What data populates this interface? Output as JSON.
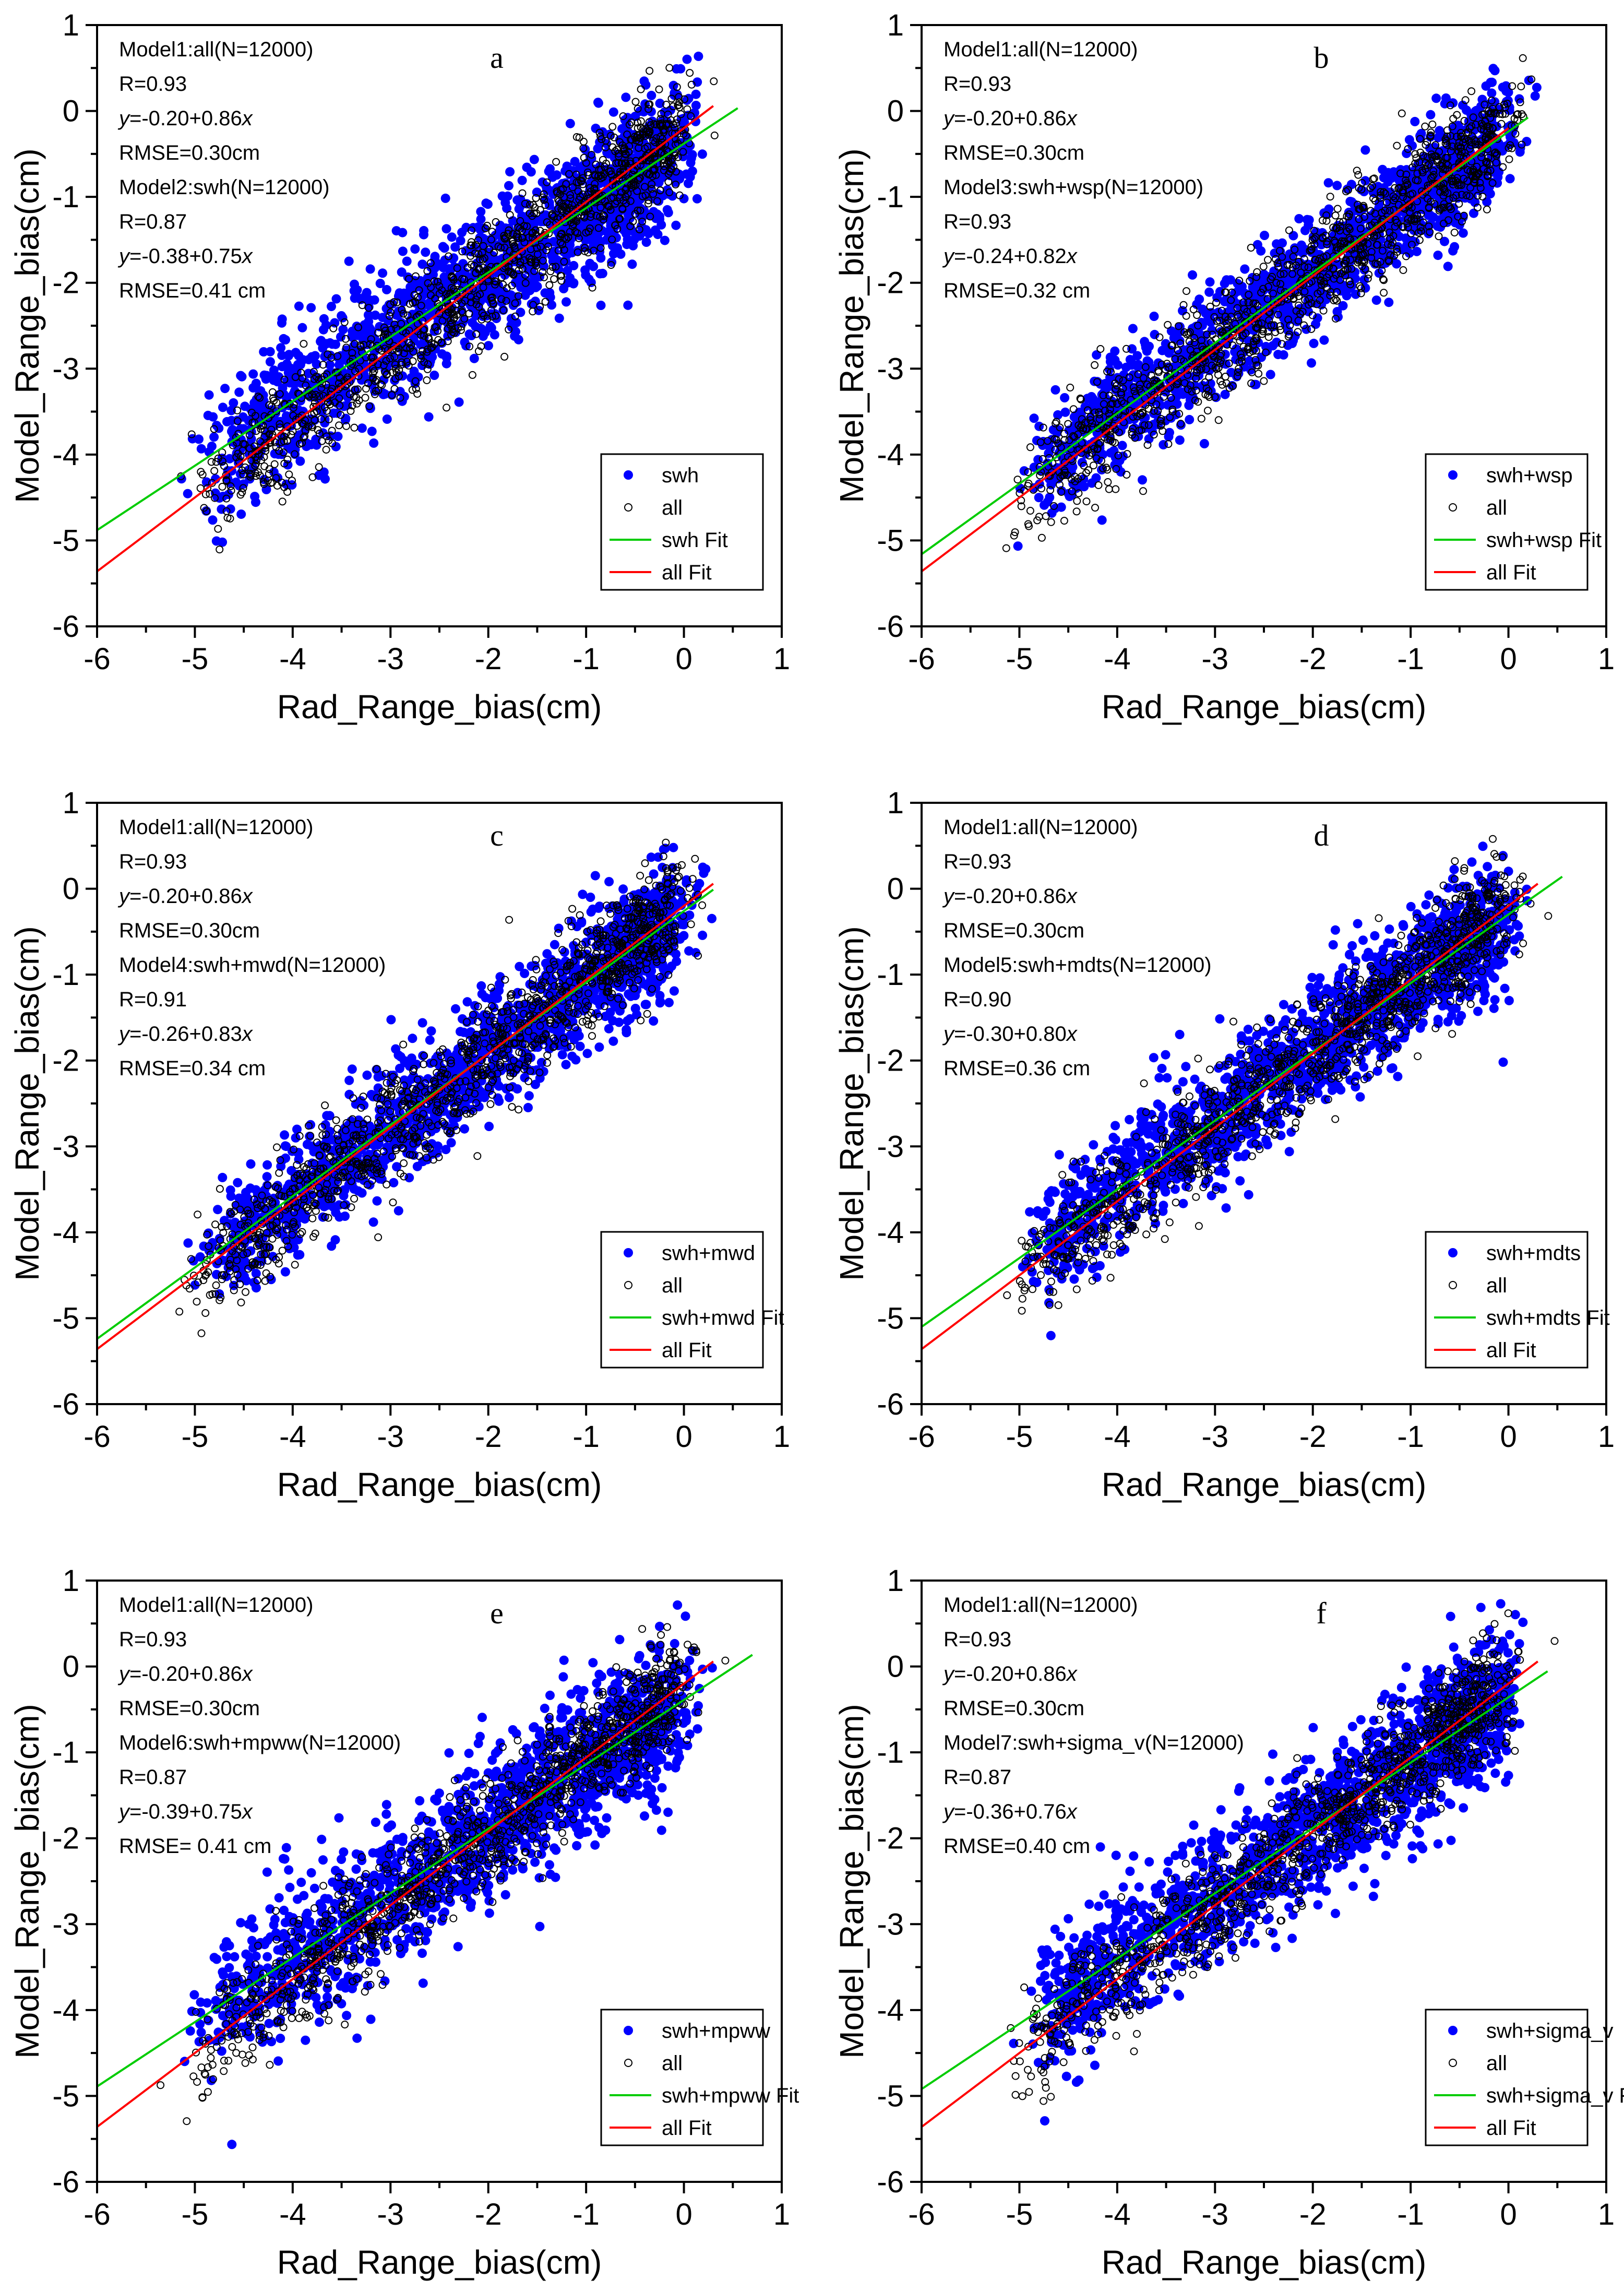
{
  "chart_data": [
    {
      "type": "scatter",
      "panel": "a",
      "xlabel": "Rad_Range_bias(cm)",
      "ylabel": "Model_Range_bias(cm)",
      "xlim": [
        -6,
        1
      ],
      "ylim": [
        -6,
        1
      ],
      "xticks": [
        "-6",
        "-5",
        "-4",
        "-3",
        "-2",
        "-1",
        "0",
        "1"
      ],
      "yticks": [
        "-6",
        "-5",
        "-4",
        "-3",
        "-2",
        "-1",
        "0",
        "1"
      ],
      "annotations": [
        {
          "text": "Model1:all(N=12000)"
        },
        {
          "text": "R=0.93"
        },
        {
          "pre": "",
          "it": "y",
          "post": "=-0.20+0.86",
          "it2": "x"
        },
        {
          "text": "RMSE=0.30cm"
        },
        {
          "text": "Model2:swh(N=12000)"
        },
        {
          "text": "R=0.87"
        },
        {
          "pre": "",
          "it": "y",
          "post": "=-0.38+0.75",
          "it2": "x"
        },
        {
          "text": "RMSE=0.41 cm"
        }
      ],
      "legend": [
        "swh",
        "all",
        "swh Fit",
        "all Fit"
      ],
      "series": [
        {
          "name": "swh",
          "kind": "points",
          "color": "#0000ff",
          "fit": {
            "intercept": -0.38,
            "slope": 0.75,
            "x_range": [
              -6,
              0.55
            ]
          },
          "R": 0.87,
          "RMSE": 0.41,
          "N": 12000
        },
        {
          "name": "all",
          "kind": "points",
          "color": "#000000",
          "fit": {
            "intercept": -0.2,
            "slope": 0.86,
            "x_range": [
              -6,
              0.3
            ]
          },
          "R": 0.93,
          "RMSE": 0.3,
          "N": 12000
        }
      ],
      "fit_colors": {
        "model": "#00cc00",
        "all": "#ff0000"
      }
    },
    {
      "type": "scatter",
      "panel": "b",
      "xlabel": "Rad_Range_bias(cm)",
      "ylabel": "Model_Range_bias(cm)",
      "xlim": [
        -6,
        1
      ],
      "ylim": [
        -6,
        1
      ],
      "xticks": [
        "-6",
        "-5",
        "-4",
        "-3",
        "-2",
        "-1",
        "0",
        "1"
      ],
      "yticks": [
        "-6",
        "-5",
        "-4",
        "-3",
        "-2",
        "-1",
        "0",
        "1"
      ],
      "annotations": [
        {
          "text": "Model1:all(N=12000)"
        },
        {
          "text": "R=0.93"
        },
        {
          "pre": "",
          "it": "y",
          "post": "=-0.20+0.86",
          "it2": "x"
        },
        {
          "text": "RMSE=0.30cm"
        },
        {
          "text": "Model3:swh+wsp(N=12000)"
        },
        {
          "text": "R=0.93"
        },
        {
          "pre": "",
          "it": "y",
          "post": "=-0.24+0.82",
          "it2": "x"
        },
        {
          "text": "RMSE=0.32 cm"
        }
      ],
      "legend": [
        "swh+wsp",
        "all",
        "swh+wsp Fit",
        "all Fit"
      ],
      "series": [
        {
          "name": "swh+wsp",
          "kind": "points",
          "color": "#0000ff",
          "fit": {
            "intercept": -0.24,
            "slope": 0.82,
            "x_range": [
              -6,
              0.2
            ]
          },
          "R": 0.93,
          "RMSE": 0.32,
          "N": 12000
        },
        {
          "name": "all",
          "kind": "points",
          "color": "#000000",
          "fit": {
            "intercept": -0.2,
            "slope": 0.86,
            "x_range": [
              -6,
              0.0
            ]
          },
          "R": 0.93,
          "RMSE": 0.3,
          "N": 12000
        }
      ],
      "fit_colors": {
        "model": "#00cc00",
        "all": "#ff0000"
      }
    },
    {
      "type": "scatter",
      "panel": "c",
      "xlabel": "Rad_Range_bias(cm)",
      "ylabel": "Model_Range_bias(cm)",
      "xlim": [
        -6,
        1
      ],
      "ylim": [
        -6,
        1
      ],
      "xticks": [
        "-6",
        "-5",
        "-4",
        "-3",
        "-2",
        "-1",
        "0",
        "1"
      ],
      "yticks": [
        "-6",
        "-5",
        "-4",
        "-3",
        "-2",
        "-1",
        "0",
        "1"
      ],
      "annotations": [
        {
          "text": "Model1:all(N=12000)"
        },
        {
          "text": "R=0.93"
        },
        {
          "pre": "",
          "it": "y",
          "post": "=-0.20+0.86",
          "it2": "x"
        },
        {
          "text": "RMSE=0.30cm"
        },
        {
          "text": "Model4:swh+mwd(N=12000)"
        },
        {
          "text": "R=0.91"
        },
        {
          "pre": "",
          "it": "y",
          "post": "=-0.26+0.83",
          "it2": "x"
        },
        {
          "text": "RMSE=0.34 cm"
        }
      ],
      "legend": [
        "swh+mwd",
        "all",
        "swh+mwd Fit",
        "all Fit"
      ],
      "series": [
        {
          "name": "swh+mwd",
          "kind": "points",
          "color": "#0000ff",
          "fit": {
            "intercept": -0.26,
            "slope": 0.83,
            "x_range": [
              -6,
              0.3
            ]
          },
          "R": 0.91,
          "RMSE": 0.34,
          "N": 12000
        },
        {
          "name": "all",
          "kind": "points",
          "color": "#000000",
          "fit": {
            "intercept": -0.2,
            "slope": 0.86,
            "x_range": [
              -6,
              0.3
            ]
          },
          "R": 0.93,
          "RMSE": 0.3,
          "N": 12000
        }
      ],
      "fit_colors": {
        "model": "#00cc00",
        "all": "#ff0000"
      }
    },
    {
      "type": "scatter",
      "panel": "d",
      "xlabel": "Rad_Range_bias(cm)",
      "ylabel": "Model_Range_bias(cm)",
      "xlim": [
        -6,
        1
      ],
      "ylim": [
        -6,
        1
      ],
      "xticks": [
        "-6",
        "-5",
        "-4",
        "-3",
        "-2",
        "-1",
        "0",
        "1"
      ],
      "yticks": [
        "-6",
        "-5",
        "-4",
        "-3",
        "-2",
        "-1",
        "0",
        "1"
      ],
      "annotations": [
        {
          "text": "Model1:all(N=12000)"
        },
        {
          "text": "R=0.93"
        },
        {
          "pre": "",
          "it": "y",
          "post": "=-0.20+0.86",
          "it2": "x"
        },
        {
          "text": "RMSE=0.30cm"
        },
        {
          "text": "Model5:swh+mdts(N=12000)"
        },
        {
          "text": "R=0.90"
        },
        {
          "pre": "",
          "it": "y",
          "post": "=-0.30+0.80",
          "it2": "x"
        },
        {
          "text": "RMSE=0.36 cm"
        }
      ],
      "legend": [
        "swh+mdts",
        "all",
        "swh+mdts Fit",
        "all Fit"
      ],
      "series": [
        {
          "name": "swh+mdts",
          "kind": "points",
          "color": "#0000ff",
          "fit": {
            "intercept": -0.3,
            "slope": 0.8,
            "x_range": [
              -6,
              0.55
            ]
          },
          "R": 0.9,
          "RMSE": 0.36,
          "N": 12000
        },
        {
          "name": "all",
          "kind": "points",
          "color": "#000000",
          "fit": {
            "intercept": -0.2,
            "slope": 0.86,
            "x_range": [
              -6,
              0.3
            ]
          },
          "R": 0.93,
          "RMSE": 0.3,
          "N": 12000
        }
      ],
      "fit_colors": {
        "model": "#00cc00",
        "all": "#ff0000"
      }
    },
    {
      "type": "scatter",
      "panel": "e",
      "xlabel": "Rad_Range_bias(cm)",
      "ylabel": "Model_Range_bias(cm)",
      "xlim": [
        -6,
        1
      ],
      "ylim": [
        -6,
        1
      ],
      "xticks": [
        "-6",
        "-5",
        "-4",
        "-3",
        "-2",
        "-1",
        "0",
        "1"
      ],
      "yticks": [
        "-6",
        "-5",
        "-4",
        "-3",
        "-2",
        "-1",
        "0",
        "1"
      ],
      "annotations": [
        {
          "text": "Model1:all(N=12000)"
        },
        {
          "text": "R=0.93"
        },
        {
          "pre": "",
          "it": "y",
          "post": "=-0.20+0.86",
          "it2": "x"
        },
        {
          "text": "RMSE=0.30cm"
        },
        {
          "text": "Model6:swh+mpww(N=12000)"
        },
        {
          "text": "R=0.87"
        },
        {
          "pre": "",
          "it": "y",
          "post": "=-0.39+0.75",
          "it2": "x"
        },
        {
          "text": "RMSE= 0.41 cm"
        }
      ],
      "legend": [
        "swh+mpww",
        "all",
        "swh+mpww Fit",
        "all Fit"
      ],
      "series": [
        {
          "name": "swh+mpww",
          "kind": "points",
          "color": "#0000ff",
          "fit": {
            "intercept": -0.39,
            "slope": 0.75,
            "x_range": [
              -6,
              0.7
            ]
          },
          "R": 0.87,
          "RMSE": 0.41,
          "N": 12000
        },
        {
          "name": "all",
          "kind": "points",
          "color": "#000000",
          "fit": {
            "intercept": -0.2,
            "slope": 0.86,
            "x_range": [
              -6,
              0.3
            ]
          },
          "R": 0.93,
          "RMSE": 0.3,
          "N": 12000
        }
      ],
      "fit_colors": {
        "model": "#00cc00",
        "all": "#ff0000"
      }
    },
    {
      "type": "scatter",
      "panel": "f",
      "xlabel": "Rad_Range_bias(cm)",
      "ylabel": "Model_Range_bias(cm)",
      "xlim": [
        -6,
        1
      ],
      "ylim": [
        -6,
        1
      ],
      "xticks": [
        "-6",
        "-5",
        "-4",
        "-3",
        "-2",
        "-1",
        "0",
        "1"
      ],
      "yticks": [
        "-6",
        "-5",
        "-4",
        "-3",
        "-2",
        "-1",
        "0",
        "1"
      ],
      "annotations": [
        {
          "text": "Model1:all(N=12000)"
        },
        {
          "text": "R=0.93"
        },
        {
          "pre": "",
          "it": "y",
          "post": "=-0.20+0.86",
          "it2": "x"
        },
        {
          "text": "RMSE=0.30cm"
        },
        {
          "text": "Model7:swh+sigma_v(N=12000)"
        },
        {
          "text": "R=0.87"
        },
        {
          "pre": "",
          "it": "y",
          "post": "=-0.36+0.76",
          "it2": "x"
        },
        {
          "text": "RMSE=0.40 cm"
        }
      ],
      "legend": [
        "swh+sigma_v",
        "all",
        "swh+sigma_v Fit",
        "all Fit"
      ],
      "series": [
        {
          "name": "swh+sigma_v",
          "kind": "points",
          "color": "#0000ff",
          "fit": {
            "intercept": -0.36,
            "slope": 0.76,
            "x_range": [
              -6,
              0.4
            ]
          },
          "R": 0.87,
          "RMSE": 0.4,
          "N": 12000
        },
        {
          "name": "all",
          "kind": "points",
          "color": "#000000",
          "fit": {
            "intercept": -0.2,
            "slope": 0.86,
            "x_range": [
              -6,
              0.3
            ]
          },
          "R": 0.93,
          "RMSE": 0.3,
          "N": 12000
        }
      ],
      "fit_colors": {
        "model": "#00cc00",
        "all": "#ff0000"
      }
    }
  ]
}
